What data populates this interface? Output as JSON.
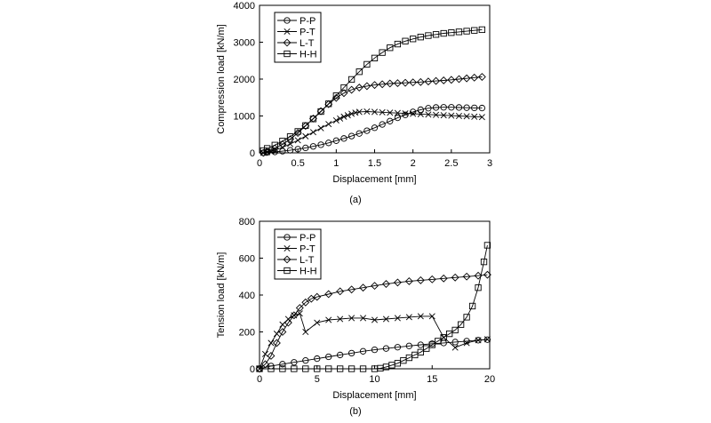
{
  "chart_data": [
    {
      "type": "line",
      "title": "",
      "caption": "(a)",
      "xlabel": "Displacement [mm]",
      "ylabel": "Compression load [kN/m]",
      "xlim": [
        0,
        3
      ],
      "ylim": [
        0,
        4000
      ],
      "xticks": [
        "0",
        "0.5",
        "1",
        "1.5",
        "2",
        "2.5",
        "3"
      ],
      "yticks": [
        "0",
        "1000",
        "2000",
        "3000",
        "4000"
      ],
      "legend_position": "top-left",
      "grid": false,
      "series": [
        {
          "name": "P-P",
          "marker": "circle",
          "x": [
            0.05,
            0.1,
            0.2,
            0.3,
            0.4,
            0.5,
            0.6,
            0.7,
            0.8,
            0.9,
            1.0,
            1.1,
            1.2,
            1.3,
            1.4,
            1.5,
            1.6,
            1.7,
            1.8,
            1.9,
            2.0,
            2.1,
            2.2,
            2.3,
            2.4,
            2.5,
            2.6,
            2.7,
            2.8,
            2.9
          ],
          "y": [
            0,
            10,
            25,
            45,
            70,
            100,
            135,
            175,
            220,
            270,
            330,
            390,
            455,
            525,
            600,
            680,
            770,
            860,
            950,
            1030,
            1110,
            1170,
            1210,
            1230,
            1235,
            1235,
            1230,
            1225,
            1220,
            1215
          ]
        },
        {
          "name": "P-T",
          "marker": "x",
          "x": [
            0.05,
            0.1,
            0.15,
            0.2,
            0.3,
            0.4,
            0.5,
            0.6,
            0.7,
            0.8,
            0.9,
            1.0,
            1.05,
            1.1,
            1.15,
            1.2,
            1.25,
            1.3,
            1.4,
            1.5,
            1.6,
            1.7,
            1.8,
            1.9,
            2.0,
            2.1,
            2.2,
            2.3,
            2.4,
            2.5,
            2.6,
            2.7,
            2.8,
            2.9
          ],
          "y": [
            0,
            20,
            45,
            75,
            150,
            240,
            340,
            450,
            560,
            670,
            780,
            880,
            930,
            980,
            1020,
            1060,
            1090,
            1110,
            1120,
            1110,
            1100,
            1090,
            1080,
            1070,
            1060,
            1050,
            1040,
            1030,
            1020,
            1010,
            1000,
            990,
            980,
            970
          ]
        },
        {
          "name": "L-T",
          "marker": "diamond",
          "x": [
            0.05,
            0.1,
            0.2,
            0.3,
            0.4,
            0.5,
            0.6,
            0.7,
            0.8,
            0.9,
            1.0,
            1.1,
            1.2,
            1.3,
            1.4,
            1.5,
            1.6,
            1.7,
            1.8,
            1.9,
            2.0,
            2.1,
            2.2,
            2.3,
            2.4,
            2.5,
            2.6,
            2.7,
            2.8,
            2.9
          ],
          "y": [
            0,
            40,
            120,
            230,
            370,
            540,
            730,
            930,
            1130,
            1320,
            1490,
            1620,
            1710,
            1770,
            1810,
            1840,
            1860,
            1880,
            1890,
            1900,
            1910,
            1920,
            1935,
            1950,
            1965,
            1980,
            2000,
            2020,
            2040,
            2060
          ]
        },
        {
          "name": "H-H",
          "marker": "square",
          "x": [
            0.05,
            0.1,
            0.2,
            0.3,
            0.4,
            0.5,
            0.6,
            0.7,
            0.8,
            0.9,
            1.0,
            1.1,
            1.2,
            1.3,
            1.4,
            1.5,
            1.6,
            1.7,
            1.8,
            1.9,
            2.0,
            2.1,
            2.2,
            2.3,
            2.4,
            2.5,
            2.6,
            2.7,
            2.8,
            2.9
          ],
          "y": [
            60,
            120,
            210,
            320,
            440,
            580,
            740,
            920,
            1120,
            1330,
            1550,
            1770,
            1990,
            2200,
            2400,
            2570,
            2720,
            2850,
            2950,
            3030,
            3090,
            3140,
            3180,
            3210,
            3240,
            3260,
            3280,
            3300,
            3320,
            3340
          ]
        }
      ]
    },
    {
      "type": "line",
      "title": "",
      "caption": "(b)",
      "xlabel": "Displacement [mm]",
      "ylabel": "Tension load [kN/m]",
      "xlim": [
        0,
        20
      ],
      "ylim": [
        0,
        800
      ],
      "xticks": [
        "0",
        "5",
        "10",
        "15",
        "20"
      ],
      "yticks": [
        "0",
        "200",
        "400",
        "600",
        "800"
      ],
      "legend_position": "top-left",
      "grid": false,
      "series": [
        {
          "name": "P-P",
          "marker": "circle",
          "x": [
            0,
            1,
            2,
            3,
            4,
            5,
            6,
            7,
            8,
            9,
            10,
            11,
            12,
            13,
            14,
            15,
            16,
            17,
            18,
            19,
            19.8
          ],
          "y": [
            0,
            15,
            25,
            35,
            45,
            55,
            65,
            75,
            85,
            95,
            103,
            110,
            117,
            124,
            130,
            136,
            140,
            145,
            150,
            155,
            158
          ]
        },
        {
          "name": "P-T",
          "marker": "x",
          "x": [
            0,
            0.5,
            1.0,
            1.5,
            2.0,
            2.5,
            3.0,
            3.5,
            4.0,
            5.0,
            6.0,
            7.0,
            8.0,
            9.0,
            10.0,
            11.0,
            12.0,
            13.0,
            14.0,
            15.0,
            16.0,
            17.0,
            18.0,
            19.0,
            19.8
          ],
          "y": [
            0,
            80,
            140,
            190,
            240,
            270,
            290,
            300,
            200,
            250,
            265,
            270,
            275,
            275,
            265,
            270,
            275,
            280,
            285,
            285,
            170,
            115,
            140,
            155,
            160
          ]
        },
        {
          "name": "L-T",
          "marker": "diamond",
          "x": [
            0,
            0.5,
            1.0,
            1.5,
            2.0,
            2.5,
            3.0,
            3.5,
            4.0,
            4.5,
            5.0,
            6.0,
            7.0,
            8.0,
            9.0,
            10.0,
            11.0,
            12.0,
            13.0,
            14.0,
            15.0,
            16.0,
            17.0,
            18.0,
            19.0,
            19.8
          ],
          "y": [
            0,
            25,
            70,
            140,
            200,
            250,
            290,
            330,
            360,
            380,
            390,
            405,
            420,
            430,
            440,
            450,
            460,
            468,
            475,
            480,
            485,
            490,
            495,
            500,
            505,
            510
          ]
        },
        {
          "name": "H-H",
          "marker": "square",
          "x": [
            0,
            1,
            2,
            3,
            4,
            5,
            6,
            7,
            8,
            9,
            10,
            10.5,
            11,
            11.5,
            12,
            12.5,
            13,
            13.5,
            14,
            14.5,
            15,
            15.5,
            16,
            16.5,
            17,
            17.5,
            18,
            18.5,
            19,
            19.5,
            19.8
          ],
          "y": [
            0,
            0,
            0,
            0,
            0,
            0,
            0,
            0,
            0,
            0,
            0,
            3,
            10,
            20,
            30,
            45,
            60,
            75,
            90,
            110,
            130,
            150,
            170,
            190,
            210,
            240,
            280,
            340,
            440,
            580,
            670
          ]
        }
      ]
    }
  ]
}
